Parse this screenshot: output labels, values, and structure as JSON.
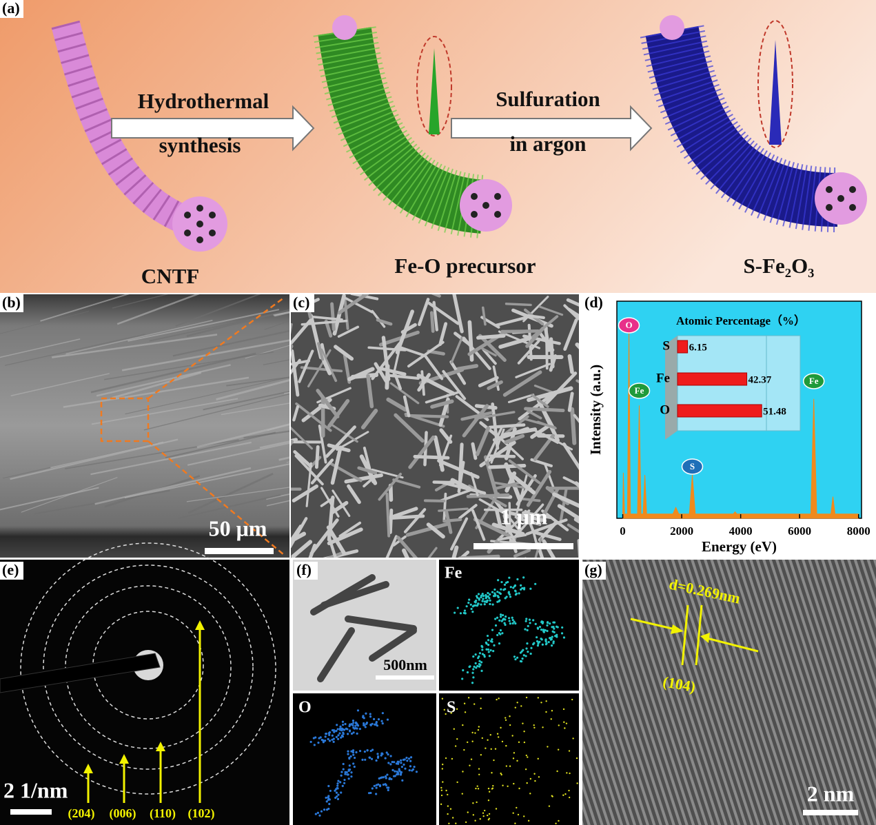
{
  "panel_labels": [
    "(a)",
    "(b)",
    "(c)",
    "(d)",
    "(e)",
    "(f)",
    "(g)"
  ],
  "scheme": {
    "stages": [
      "CNTF",
      "Fe-O precursor",
      "S-Fe₂O₃"
    ],
    "steps": [
      [
        "Hydrothermal",
        "synthesis"
      ],
      [
        "Sulfuration",
        "in argon"
      ]
    ]
  },
  "scale_bars": {
    "b": "50 μm",
    "c": "1 μm",
    "e": "2 1/nm",
    "f": "500nm",
    "g": "2 nm"
  },
  "diffraction_rings": [
    "(204)",
    "(006)",
    "(110)",
    "(102)"
  ],
  "element_maps": [
    "Fe",
    "O",
    "S"
  ],
  "lattice": {
    "spacing": "d=0.269nm",
    "plane": "(104)"
  },
  "chart_data": [
    {
      "type": "area",
      "xlabel": "Energy (eV)",
      "ylabel": "Intensity (a.u.)",
      "color": "#f08a1c",
      "x": [
        0,
        20,
        60,
        160,
        210,
        260,
        500,
        560,
        620,
        690,
        750,
        810,
        1700,
        1800,
        1900,
        2260,
        2360,
        2460,
        3750,
        3810,
        3870,
        6380,
        6480,
        6580,
        7060,
        7130,
        7200,
        8000
      ],
      "values": [
        2,
        21,
        2,
        2,
        87,
        2,
        2,
        52,
        2,
        2,
        20,
        2,
        2,
        5,
        2,
        2,
        20,
        2,
        2,
        3,
        2,
        2,
        55,
        2,
        2,
        10,
        2,
        2
      ],
      "xlim": [
        -200,
        8100
      ],
      "xticks": [
        0,
        2000,
        4000,
        6000,
        8000
      ],
      "ylim": [
        0,
        100
      ],
      "annotations": [
        {
          "text": "O",
          "x": 210,
          "color": "#e8308a"
        },
        {
          "text": "Fe",
          "x": 560,
          "color": "#1f9a3a"
        },
        {
          "text": "S",
          "x": 2360,
          "color": "#1f6fb8"
        },
        {
          "text": "Fe",
          "x": 6480,
          "color": "#1f9a3a"
        }
      ]
    },
    {
      "type": "hbar",
      "title": "Atomic Percentage（%）",
      "categories": [
        "S",
        "Fe",
        "O"
      ],
      "values": [
        6.15,
        42.37,
        51.48
      ],
      "color": "#ee1c1c",
      "xlim": [
        0,
        75
      ]
    }
  ]
}
